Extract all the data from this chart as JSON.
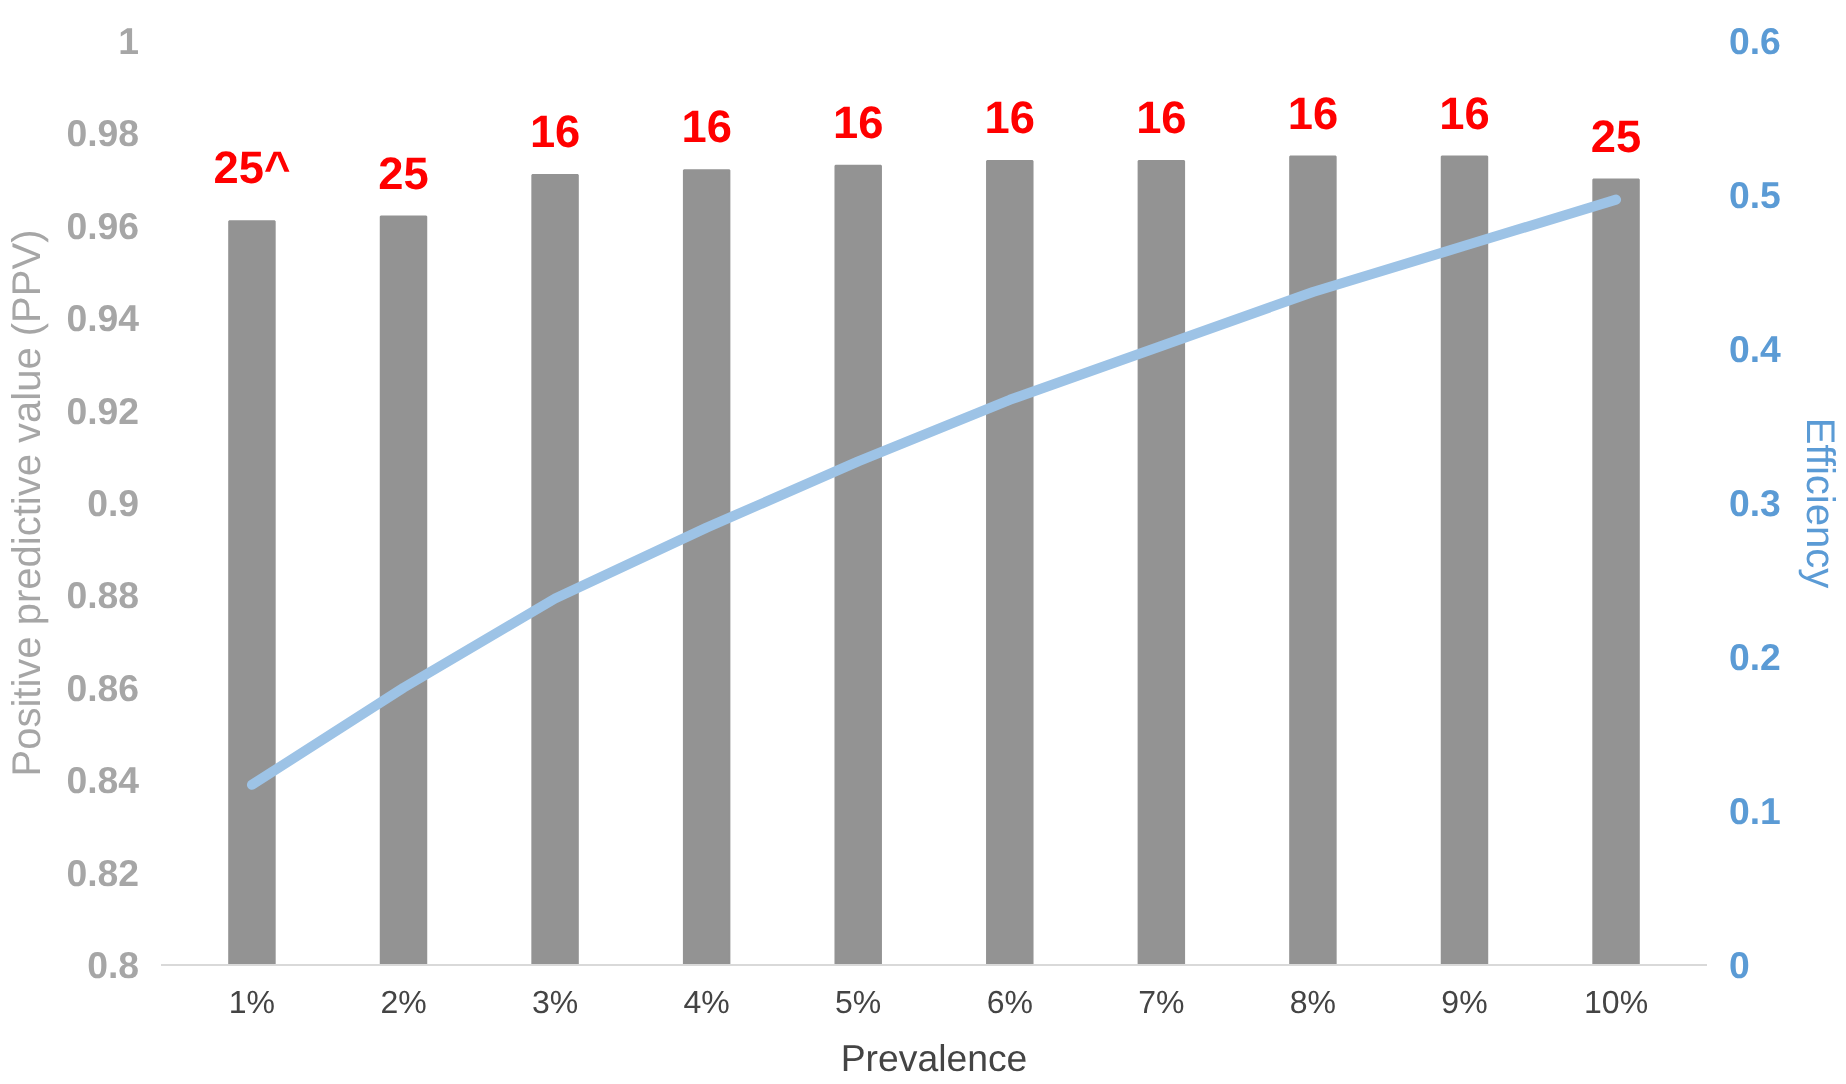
{
  "chart_data": {
    "type": "bar",
    "xlabel": "Prevalence",
    "ylabel": "Positive predictive value (PPV)",
    "y2label": "Efficiency",
    "categories": [
      "1%",
      "2%",
      "3%",
      "4%",
      "5%",
      "6%",
      "7%",
      "8%",
      "9%",
      "10%"
    ],
    "series": [
      {
        "color": "#939393",
        "values": [
          0.961,
          0.962,
          0.971,
          0.972,
          0.973,
          0.974,
          0.974,
          0.975,
          0.975,
          0.97
        ]
      },
      {
        "type": "line",
        "axis": "y2",
        "color": "#9dc3e6",
        "values": [
          0.117,
          0.18,
          0.238,
          0.284,
          0.327,
          0.367,
          0.402,
          0.437,
          0.467,
          0.497
        ]
      }
    ],
    "annotations": [
      {
        "text": "25^",
        "x": "1%",
        "y": 0.961
      },
      {
        "text": "25",
        "x": "2%",
        "y": 0.962
      },
      {
        "text": "16",
        "x": "3%",
        "y": 0.971
      },
      {
        "text": "16",
        "x": "4%",
        "y": 0.972
      },
      {
        "text": "16",
        "x": "5%",
        "y": 0.973
      },
      {
        "text": "16",
        "x": "6%",
        "y": 0.974
      },
      {
        "text": "16",
        "x": "7%",
        "y": 0.974
      },
      {
        "text": "16",
        "x": "8%",
        "y": 0.975
      },
      {
        "text": "16",
        "x": "9%",
        "y": 0.975
      },
      {
        "text": "25",
        "x": "10%",
        "y": 0.97
      }
    ],
    "ylim": [
      0.8,
      1
    ],
    "yticks": [
      0.8,
      0.82,
      0.84,
      0.86,
      0.88,
      0.9,
      0.92,
      0.94,
      0.96,
      0.98,
      1
    ],
    "y2lim": [
      0,
      0.6
    ],
    "y2ticks": [
      0,
      0.1,
      0.2,
      0.3,
      0.4,
      0.5,
      0.6
    ],
    "grid": false
  }
}
